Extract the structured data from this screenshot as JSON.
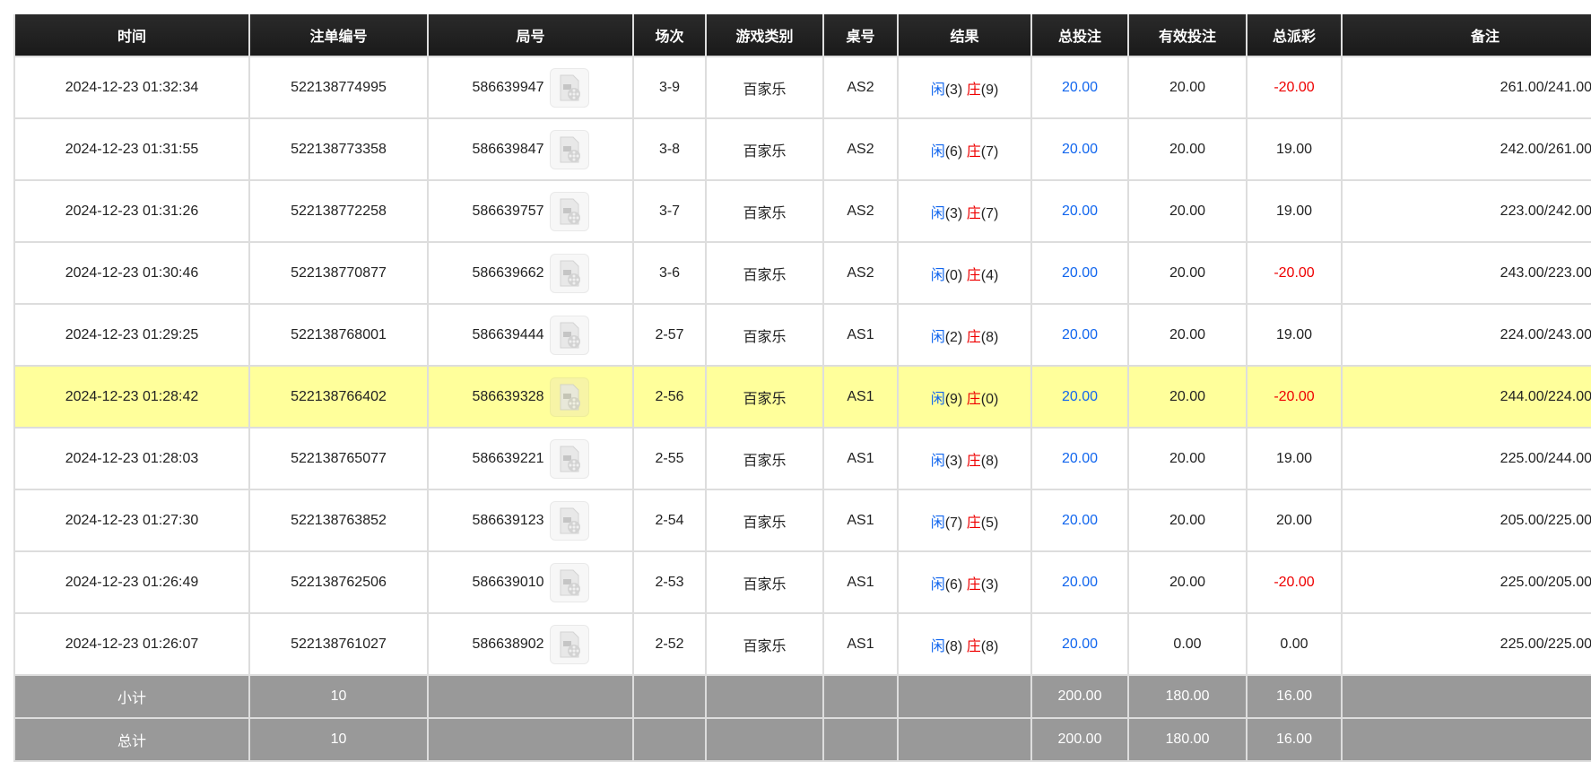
{
  "columns": [
    "时间",
    "注单编号",
    "局号",
    "场次",
    "游戏类别",
    "桌号",
    "结果",
    "总投注",
    "有效投注",
    "总派彩",
    "备注"
  ],
  "result_labels": {
    "player": "闲",
    "banker": "庄"
  },
  "colors": {
    "player": "#1166ee",
    "banker": "#ee0000",
    "negative": "#ee0000",
    "highlight": "#ffff9b",
    "summary": "#999999"
  },
  "rows": [
    {
      "time": "2024-12-23 01:32:34",
      "bet_id": "522138774995",
      "round": "586639947",
      "shoe": "3-9",
      "game": "百家乐",
      "table": "AS2",
      "player": "(3)",
      "banker": "(9)",
      "total_bet": "20.00",
      "valid_bet": "20.00",
      "payout": "-20.00",
      "remark": "261.00/241.00"
    },
    {
      "time": "2024-12-23 01:31:55",
      "bet_id": "522138773358",
      "round": "586639847",
      "shoe": "3-8",
      "game": "百家乐",
      "table": "AS2",
      "player": "(6)",
      "banker": "(7)",
      "total_bet": "20.00",
      "valid_bet": "20.00",
      "payout": "19.00",
      "remark": "242.00/261.00"
    },
    {
      "time": "2024-12-23 01:31:26",
      "bet_id": "522138772258",
      "round": "586639757",
      "shoe": "3-7",
      "game": "百家乐",
      "table": "AS2",
      "player": "(3)",
      "banker": "(7)",
      "total_bet": "20.00",
      "valid_bet": "20.00",
      "payout": "19.00",
      "remark": "223.00/242.00"
    },
    {
      "time": "2024-12-23 01:30:46",
      "bet_id": "522138770877",
      "round": "586639662",
      "shoe": "3-6",
      "game": "百家乐",
      "table": "AS2",
      "player": "(0)",
      "banker": "(4)",
      "total_bet": "20.00",
      "valid_bet": "20.00",
      "payout": "-20.00",
      "remark": "243.00/223.00"
    },
    {
      "time": "2024-12-23 01:29:25",
      "bet_id": "522138768001",
      "round": "586639444",
      "shoe": "2-57",
      "game": "百家乐",
      "table": "AS1",
      "player": "(2)",
      "banker": "(8)",
      "total_bet": "20.00",
      "valid_bet": "20.00",
      "payout": "19.00",
      "remark": "224.00/243.00"
    },
    {
      "time": "2024-12-23 01:28:42",
      "bet_id": "522138766402",
      "round": "586639328",
      "shoe": "2-56",
      "game": "百家乐",
      "table": "AS1",
      "player": "(9)",
      "banker": "(0)",
      "total_bet": "20.00",
      "valid_bet": "20.00",
      "payout": "-20.00",
      "remark": "244.00/224.00",
      "highlighted": true
    },
    {
      "time": "2024-12-23 01:28:03",
      "bet_id": "522138765077",
      "round": "586639221",
      "shoe": "2-55",
      "game": "百家乐",
      "table": "AS1",
      "player": "(3)",
      "banker": "(8)",
      "total_bet": "20.00",
      "valid_bet": "20.00",
      "payout": "19.00",
      "remark": "225.00/244.00"
    },
    {
      "time": "2024-12-23 01:27:30",
      "bet_id": "522138763852",
      "round": "586639123",
      "shoe": "2-54",
      "game": "百家乐",
      "table": "AS1",
      "player": "(7)",
      "banker": "(5)",
      "total_bet": "20.00",
      "valid_bet": "20.00",
      "payout": "20.00",
      "remark": "205.00/225.00"
    },
    {
      "time": "2024-12-23 01:26:49",
      "bet_id": "522138762506",
      "round": "586639010",
      "shoe": "2-53",
      "game": "百家乐",
      "table": "AS1",
      "player": "(6)",
      "banker": "(3)",
      "total_bet": "20.00",
      "valid_bet": "20.00",
      "payout": "-20.00",
      "remark": "225.00/205.00"
    },
    {
      "time": "2024-12-23 01:26:07",
      "bet_id": "522138761027",
      "round": "586638902",
      "shoe": "2-52",
      "game": "百家乐",
      "table": "AS1",
      "player": "(8)",
      "banker": "(8)",
      "total_bet": "20.00",
      "valid_bet": "0.00",
      "payout": "0.00",
      "remark": "225.00/225.00"
    }
  ],
  "summary": [
    {
      "label": "小计",
      "count": "10",
      "total_bet": "200.00",
      "valid_bet": "180.00",
      "payout": "16.00"
    },
    {
      "label": "总计",
      "count": "10",
      "total_bet": "200.00",
      "valid_bet": "180.00",
      "payout": "16.00"
    }
  ]
}
